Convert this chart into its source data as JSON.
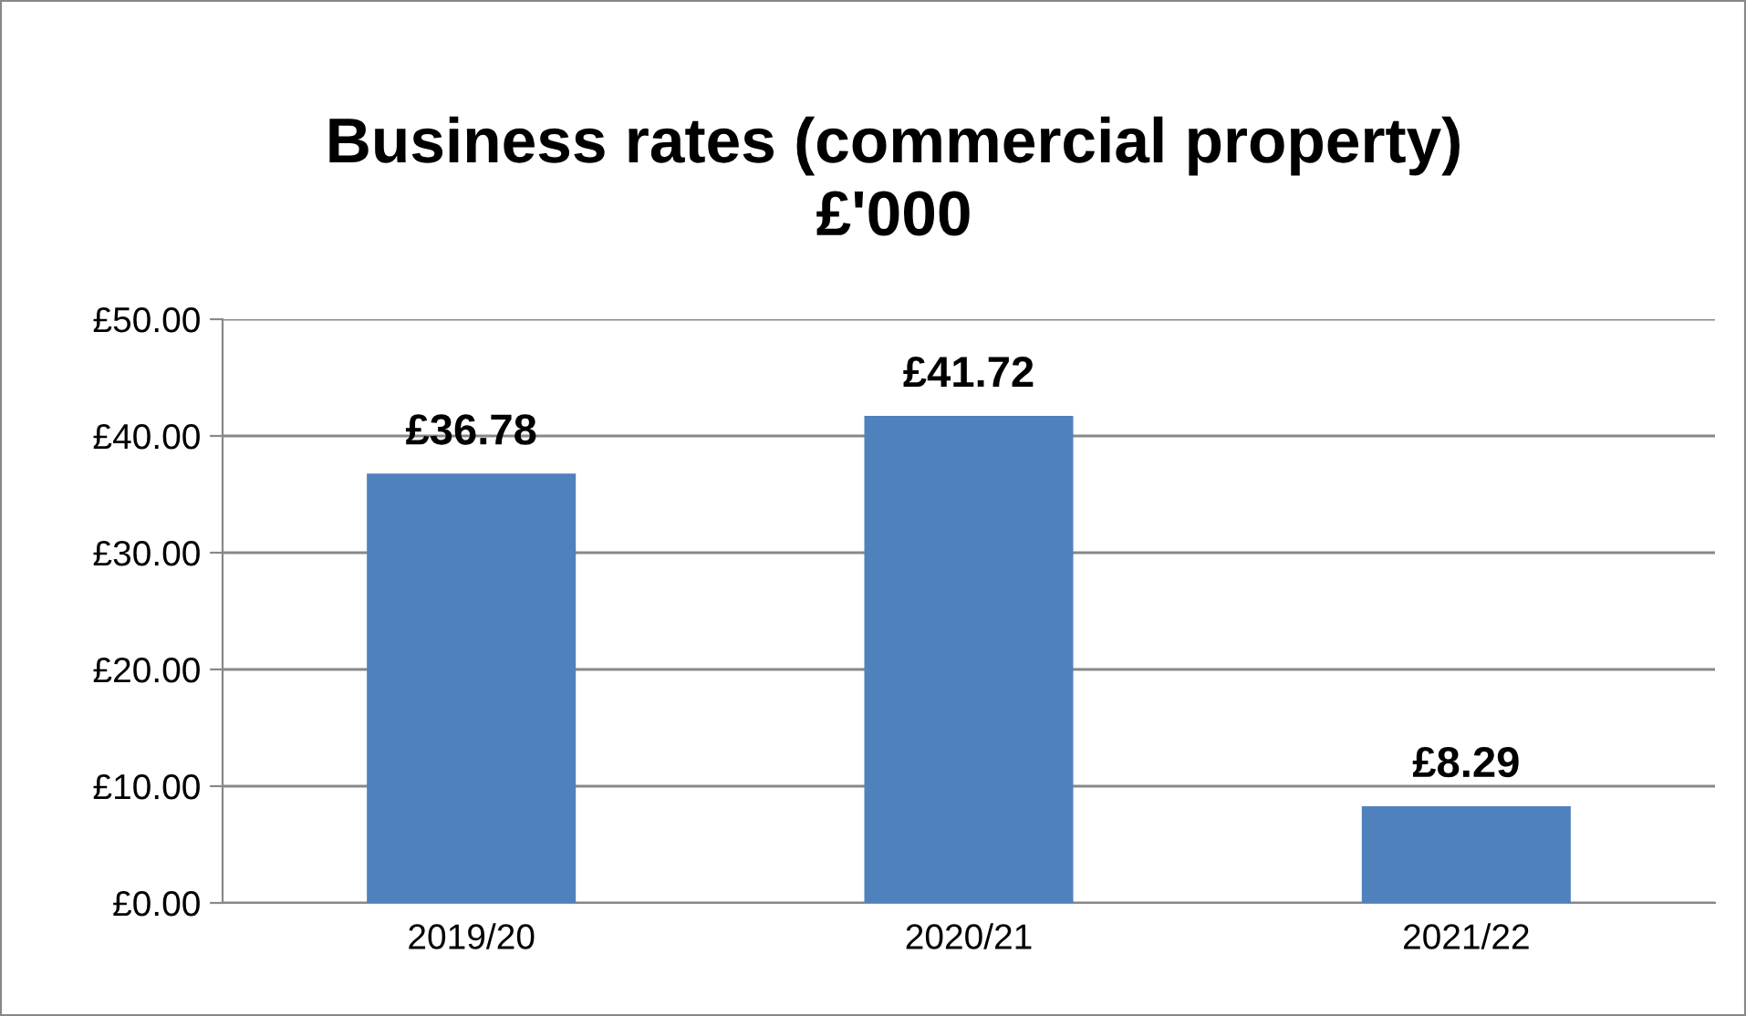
{
  "chart_data": {
    "type": "bar",
    "title": "Business rates (commercial property)\n£'000",
    "categories": [
      "2019/20",
      "2020/21",
      "2021/22"
    ],
    "values": [
      36.78,
      41.72,
      8.29
    ],
    "value_labels": [
      "£36.78",
      "£41.72",
      "£8.29"
    ],
    "color": "#4f81bd",
    "ylim": [
      0,
      50
    ],
    "yticks": [
      {
        "value": 0,
        "label": "£0.00"
      },
      {
        "value": 10,
        "label": "£10.00"
      },
      {
        "value": 20,
        "label": "£20.00"
      },
      {
        "value": 30,
        "label": "£30.00"
      },
      {
        "value": 40,
        "label": "£40.00"
      },
      {
        "value": 50,
        "label": "£50.00"
      }
    ],
    "grid": "y",
    "legend": false
  }
}
